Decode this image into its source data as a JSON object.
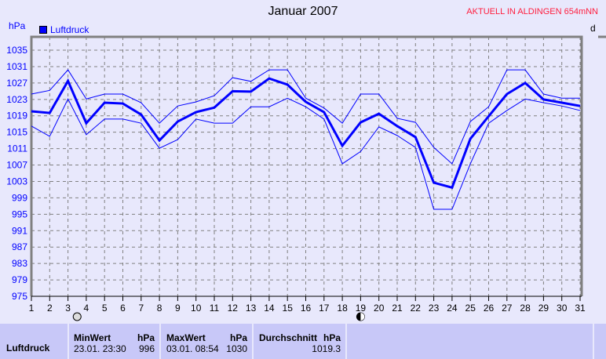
{
  "header": {
    "title": "Januar 2007",
    "station": "AKTUELL IN ALDINGEN 654mNN",
    "right_label": "d"
  },
  "chart_data": {
    "type": "line",
    "title": "Januar 2007",
    "ylabel": "hPa",
    "ylim": [
      975,
      1039
    ],
    "yticks": [
      975,
      979,
      983,
      987,
      991,
      995,
      999,
      1003,
      1007,
      1011,
      1015,
      1019,
      1023,
      1027,
      1031,
      1035
    ],
    "x": [
      1,
      2,
      3,
      4,
      5,
      6,
      7,
      8,
      9,
      10,
      11,
      12,
      13,
      14,
      15,
      16,
      17,
      18,
      19,
      20,
      21,
      22,
      23,
      24,
      25,
      26,
      27,
      28,
      29,
      30,
      31
    ],
    "grid": true,
    "legend": "top-left",
    "colors": {
      "series": "#0000ff"
    },
    "series": [
      {
        "name": "Luftdruck",
        "values": [
          1020.1,
          1019.7,
          1027.5,
          1017.2,
          1022.2,
          1022,
          1019.3,
          1013,
          1017.6,
          1019.9,
          1021,
          1025,
          1024.9,
          1028.1,
          1026.6,
          1022.4,
          1019.9,
          1011.7,
          1017.4,
          1019.5,
          1016.5,
          1013.8,
          1002.7,
          1001.5,
          1013.4,
          1018.9,
          1024.3,
          1027,
          1023,
          1022.2,
          1021.4
        ]
      },
      {
        "values": [
          1024.3,
          1025.2,
          1030.2,
          1023.1,
          1024.3,
          1024.3,
          1022.2,
          1017.2,
          1021.4,
          1022.4,
          1023.9,
          1028.3,
          1027.4,
          1030.2,
          1030.2,
          1023.3,
          1020.9,
          1017.2,
          1024.3,
          1024.3,
          1018.4,
          1017.4,
          1011.3,
          1007.3,
          1017.6,
          1021.2,
          1030.2,
          1030.2,
          1024.3,
          1023.3,
          1023.3
        ]
      },
      {
        "values": [
          1016.5,
          1014,
          1023.1,
          1014.4,
          1018.2,
          1018.2,
          1017.2,
          1011.1,
          1013.2,
          1018.2,
          1017.2,
          1017.2,
          1021.2,
          1021.2,
          1023.3,
          1021.2,
          1018.2,
          1007.3,
          1010.3,
          1016.3,
          1014.2,
          1011.3,
          996.2,
          996.2,
          1007.3,
          1017.2,
          1020.3,
          1023.1,
          1022.2,
          1021.4,
          1020.3
        ]
      }
    ],
    "moon_phases": [
      {
        "day": 3.5,
        "phase": "full-moon"
      },
      {
        "day": 19,
        "phase": "new-moon"
      }
    ]
  },
  "table": {
    "row_label": "Luftdruck",
    "min_label": "MinWert",
    "max_label": "MaxWert",
    "avg_label": "Durchschnitt",
    "unit": "hPa",
    "min_time": "23.01.  23:30",
    "min_value": "996",
    "max_time": "03.01.  08:54",
    "max_value": "1030",
    "avg_value": "1019.3"
  }
}
